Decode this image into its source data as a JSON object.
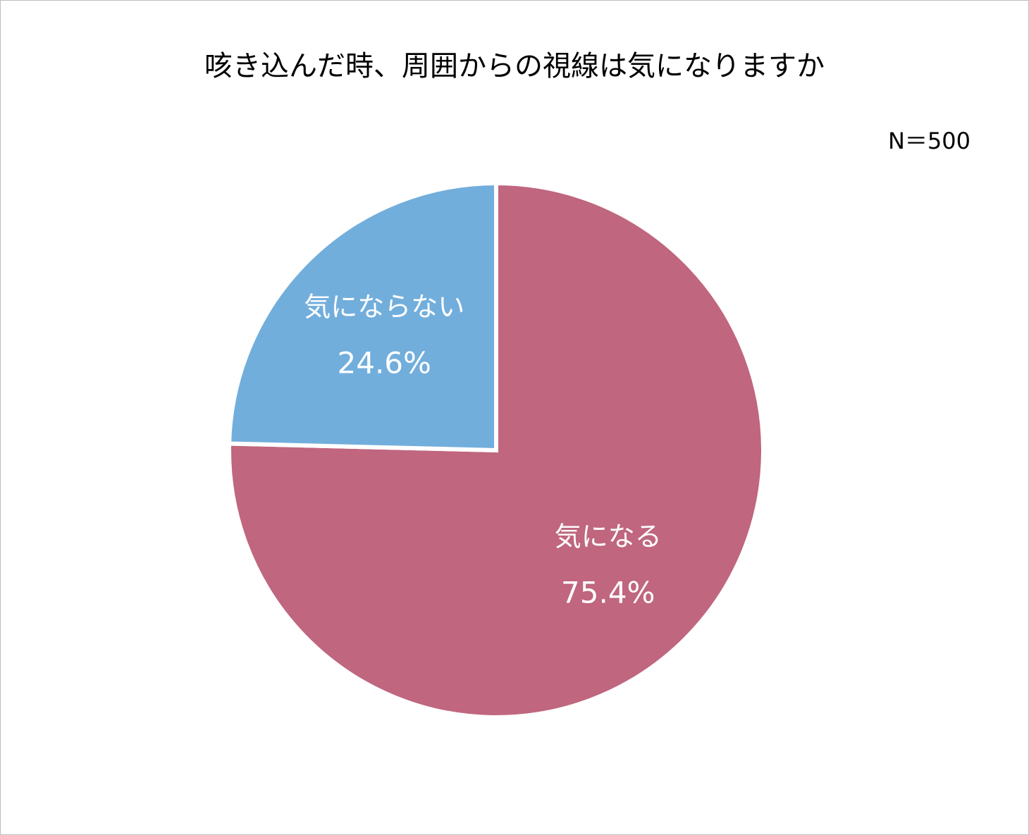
{
  "chart_data": {
    "type": "pie",
    "title": "咳き込んだ時、周囲からの視線は気になりますか",
    "annotation": "N＝500",
    "categories": [
      "気になる",
      "気にならない"
    ],
    "values": [
      75.4,
      24.6
    ],
    "value_labels": [
      "75.4%",
      "24.6%"
    ],
    "colors": [
      "#c0667f",
      "#72aedc"
    ]
  }
}
